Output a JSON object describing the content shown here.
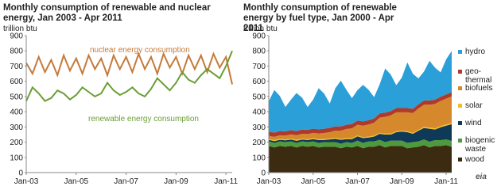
{
  "chart_data": [
    {
      "type": "line",
      "title": "Monthly consumption of renewable and nuclear energy, Jan 2003 - Apr 2011",
      "y_label": "trillion btu",
      "categories": [
        "Jan-03",
        null,
        null,
        null,
        null,
        null,
        null,
        null,
        "Jan-05",
        null,
        null,
        null,
        null,
        null,
        null,
        null,
        "Jan-07",
        null,
        null,
        null,
        null,
        null,
        null,
        null,
        "Jan-09",
        null,
        null,
        null,
        null,
        null,
        null,
        null,
        "Jan-11",
        null
      ],
      "ylim": [
        0,
        900
      ],
      "yticks": [
        0,
        100,
        200,
        300,
        400,
        500,
        600,
        700,
        800,
        900
      ],
      "series": [
        {
          "name": "nuclear energy consumption",
          "color": "#c47a3a",
          "values": [
            720,
            650,
            760,
            660,
            740,
            640,
            770,
            670,
            750,
            650,
            770,
            680,
            750,
            640,
            770,
            680,
            760,
            660,
            780,
            680,
            760,
            650,
            780,
            690,
            760,
            650,
            770,
            680,
            770,
            660,
            780,
            690,
            760,
            580
          ]
        },
        {
          "name": "renewable energy consumption",
          "color": "#6a9e35",
          "values": [
            470,
            560,
            520,
            470,
            490,
            540,
            520,
            480,
            510,
            560,
            530,
            500,
            520,
            590,
            540,
            510,
            530,
            560,
            520,
            500,
            550,
            620,
            580,
            540,
            590,
            660,
            610,
            590,
            640,
            680,
            650,
            620,
            700,
            800
          ]
        }
      ]
    },
    {
      "type": "stacked_area",
      "title": "Monthly consumption of renewable energy by fuel type, Jan 2000 - Apr 2011",
      "y_label": "trillion btu",
      "logo": "eia",
      "categories": [
        "Jan-03",
        null,
        null,
        null,
        null,
        null,
        null,
        null,
        "Jan-05",
        null,
        null,
        null,
        null,
        null,
        null,
        null,
        "Jan-07",
        null,
        null,
        null,
        null,
        null,
        null,
        null,
        "Jan-09",
        null,
        null,
        null,
        null,
        null,
        null,
        null,
        "Jan-11",
        null
      ],
      "ylim": [
        0,
        900
      ],
      "yticks": [
        0,
        100,
        200,
        300,
        400,
        500,
        600,
        700,
        800,
        900
      ],
      "series": [
        {
          "name": "wood",
          "color": "#3b2b10",
          "values": [
            175,
            165,
            175,
            170,
            175,
            165,
            175,
            170,
            175,
            165,
            170,
            170,
            170,
            160,
            170,
            165,
            175,
            160,
            170,
            170,
            180,
            165,
            175,
            175,
            175,
            160,
            165,
            170,
            180,
            165,
            175,
            175,
            180,
            170
          ]
        },
        {
          "name": "biogenic\nwaste",
          "color": "#4f9a3c",
          "values": [
            30,
            30,
            30,
            30,
            30,
            30,
            30,
            30,
            30,
            30,
            30,
            30,
            30,
            30,
            30,
            30,
            35,
            35,
            35,
            35,
            35,
            35,
            35,
            35,
            35,
            35,
            35,
            35,
            38,
            38,
            38,
            38,
            38,
            38
          ]
        },
        {
          "name": "wind",
          "color": "#0e3957",
          "values": [
            10,
            12,
            10,
            12,
            12,
            14,
            12,
            14,
            15,
            18,
            14,
            18,
            22,
            25,
            20,
            25,
            28,
            32,
            25,
            32,
            40,
            50,
            40,
            55,
            60,
            70,
            55,
            70,
            75,
            85,
            70,
            85,
            90,
            110
          ]
        },
        {
          "name": "solar",
          "color": "#f0c020",
          "values": [
            6,
            6,
            6,
            6,
            6,
            6,
            6,
            6,
            6,
            6,
            6,
            6,
            6,
            6,
            6,
            6,
            6,
            6,
            6,
            6,
            6,
            6,
            6,
            6,
            6,
            6,
            6,
            6,
            8,
            8,
            8,
            8,
            8,
            8
          ]
        },
        {
          "name": "biofuels",
          "color": "#d6892c",
          "values": [
            20,
            22,
            24,
            25,
            28,
            30,
            32,
            33,
            35,
            38,
            40,
            42,
            48,
            55,
            60,
            65,
            70,
            75,
            80,
            85,
            100,
            110,
            120,
            125,
            120,
            125,
            130,
            140,
            145,
            150,
            160,
            165,
            170,
            175
          ]
        },
        {
          "name": "geo-\nthermal",
          "color": "#b03a2a",
          "values": [
            28,
            28,
            28,
            28,
            28,
            28,
            28,
            28,
            28,
            28,
            28,
            28,
            28,
            28,
            28,
            28,
            28,
            28,
            28,
            28,
            28,
            28,
            28,
            28,
            28,
            28,
            28,
            28,
            28,
            28,
            28,
            28,
            28,
            28
          ]
        },
        {
          "name": "hydro",
          "color": "#2b9fd8",
          "values": [
            200,
            280,
            230,
            160,
            200,
            250,
            210,
            150,
            190,
            270,
            230,
            160,
            250,
            300,
            230,
            170,
            200,
            240,
            200,
            140,
            190,
            290,
            240,
            150,
            200,
            300,
            230,
            170,
            190,
            260,
            210,
            160,
            230,
            270
          ]
        }
      ]
    }
  ]
}
